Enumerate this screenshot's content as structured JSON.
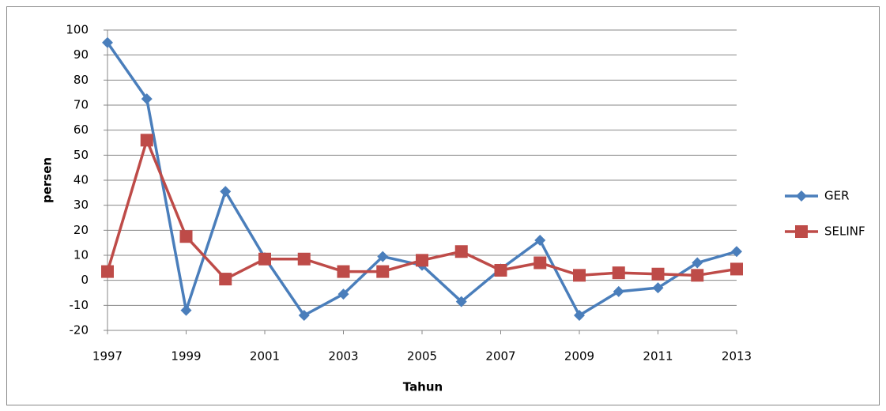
{
  "chart_data": {
    "type": "line",
    "x_label": "Tahun",
    "y_label": "persen",
    "x": [
      1997,
      1998,
      1999,
      2000,
      2001,
      2002,
      2003,
      2004,
      2005,
      2006,
      2007,
      2008,
      2009,
      2010,
      2011,
      2012,
      2013
    ],
    "series": [
      {
        "name": "GER",
        "color": "#4a7ebb",
        "marker": "diamond",
        "values": [
          95,
          72.5,
          -12,
          35.5,
          9,
          -14,
          -5.5,
          9.5,
          6,
          -8.5,
          4.5,
          16,
          -14,
          -4.5,
          -3,
          7,
          11.5
        ]
      },
      {
        "name": "SELINF",
        "color": "#be4b48",
        "marker": "square",
        "values": [
          3.5,
          56,
          17.5,
          0.5,
          8.5,
          8.5,
          3.5,
          3.5,
          8,
          11.5,
          4,
          7,
          2,
          3,
          2.5,
          2,
          4.5
        ]
      }
    ],
    "xlim": [
      1997,
      2013
    ],
    "xticks": [
      1997,
      1999,
      2001,
      2003,
      2005,
      2007,
      2009,
      2011,
      2013
    ],
    "ylim": [
      -20,
      100
    ],
    "yticks": [
      -20,
      -10,
      0,
      10,
      20,
      30,
      40,
      50,
      60,
      70,
      80,
      90,
      100
    ],
    "grid": true,
    "legend": "right"
  }
}
